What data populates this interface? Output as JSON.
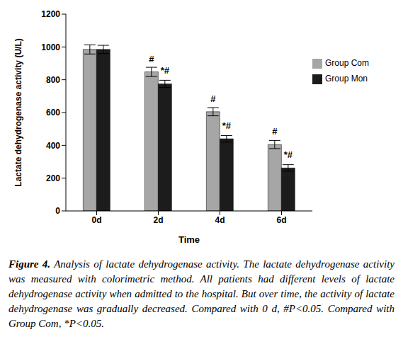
{
  "chart_data": {
    "type": "bar",
    "x_label": "Time",
    "y_label": "Lactate dehydrogenase activity (U/L)",
    "categories": [
      "0d",
      "2d",
      "4d",
      "6d"
    ],
    "series": [
      {
        "name": "Group Com",
        "color": "#a6a6a6",
        "values": [
          985,
          848,
          605,
          405
        ],
        "errors": [
          28,
          28,
          25,
          25
        ],
        "annotations": [
          null,
          "#",
          "#",
          "#"
        ]
      },
      {
        "name": "Group Mon",
        "color": "#1c1c1c",
        "values": [
          985,
          775,
          440,
          262
        ],
        "errors": [
          25,
          22,
          20,
          20
        ],
        "annotations": [
          null,
          "*#",
          "*#",
          "*#"
        ]
      }
    ],
    "ylim": [
      0,
      1200
    ],
    "yticks": [
      0,
      200,
      400,
      600,
      800,
      1000,
      1200
    ],
    "legend": "upper right",
    "grid": false,
    "caption_label": "Figure 4.",
    "caption": "Analysis of lactate dehydrogenase activity. The lactate dehydrogenase activity was measured with colorimetric method. All patients had different levels of lactate dehydrogenase activity when admitted to the hospital. But over time, the activity of lactate dehydrogenase was gradually decreased. Compared with 0 d, #P<0.05. Compared with Group Com, *P<0.05."
  }
}
